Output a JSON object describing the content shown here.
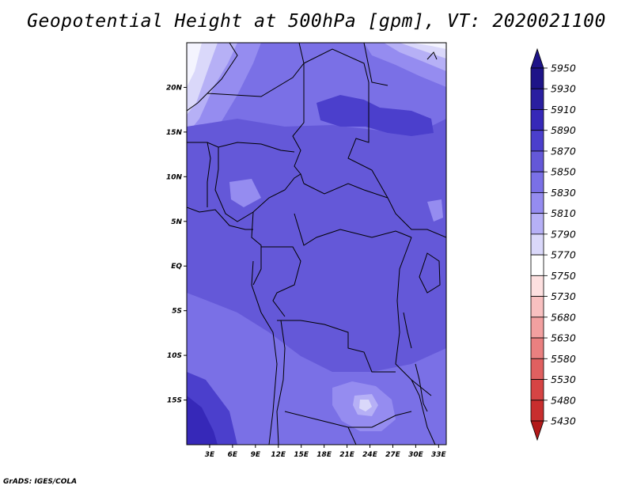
{
  "title": "Geopotential Height at 500hPa [gpm], VT: 2020021100",
  "credit": "GrADS: IGES/COLA",
  "map": {
    "variable": "Geopotential Height at 500hPa",
    "units": "gpm",
    "valid_time": "2020021100",
    "lat_range": [
      -20,
      25
    ],
    "lon_range": [
      0,
      34
    ],
    "lat_ticks": [
      {
        "value": 20,
        "label": "20N"
      },
      {
        "value": 15,
        "label": "15N"
      },
      {
        "value": 10,
        "label": "10N"
      },
      {
        "value": 5,
        "label": "5N"
      },
      {
        "value": 0,
        "label": "EQ"
      },
      {
        "value": -5,
        "label": "5S"
      },
      {
        "value": -10,
        "label": "10S"
      },
      {
        "value": -15,
        "label": "15S"
      }
    ],
    "lon_ticks": [
      {
        "value": 3,
        "label": "3E"
      },
      {
        "value": 6,
        "label": "6E"
      },
      {
        "value": 9,
        "label": "9E"
      },
      {
        "value": 12,
        "label": "12E"
      },
      {
        "value": 15,
        "label": "15E"
      },
      {
        "value": 18,
        "label": "18E"
      },
      {
        "value": 21,
        "label": "21E"
      },
      {
        "value": 24,
        "label": "24E"
      },
      {
        "value": 27,
        "label": "27E"
      },
      {
        "value": 30,
        "label": "30E"
      },
      {
        "value": 33,
        "label": "33E"
      }
    ]
  },
  "legend": {
    "levels": [
      {
        "label": "5950",
        "color": "#1e1488"
      },
      {
        "label": "5930",
        "color": "#2a1fa0"
      },
      {
        "label": "5910",
        "color": "#3628b8"
      },
      {
        "label": "5890",
        "color": "#4b3fcc"
      },
      {
        "label": "5870",
        "color": "#6458d8"
      },
      {
        "label": "5850",
        "color": "#7a70e6"
      },
      {
        "label": "5830",
        "color": "#958cf0"
      },
      {
        "label": "5810",
        "color": "#b6b0f6"
      },
      {
        "label": "5790",
        "color": "#dad8fa"
      },
      {
        "label": "5770",
        "color": "#ffffff"
      },
      {
        "label": "5750",
        "color": "#fde0e0"
      },
      {
        "label": "5730",
        "color": "#f8c0c0"
      },
      {
        "label": "5680",
        "color": "#f2a0a0"
      },
      {
        "label": "5630",
        "color": "#ea8080"
      },
      {
        "label": "5580",
        "color": "#e06060"
      },
      {
        "label": "5530",
        "color": "#d64444"
      },
      {
        "label": "5480",
        "color": "#c82e2e"
      },
      {
        "label": "5430",
        "color": "#b21a1a"
      }
    ],
    "top_cap_color": "#1e1488",
    "bottom_cap_color": "#b21a1a"
  }
}
